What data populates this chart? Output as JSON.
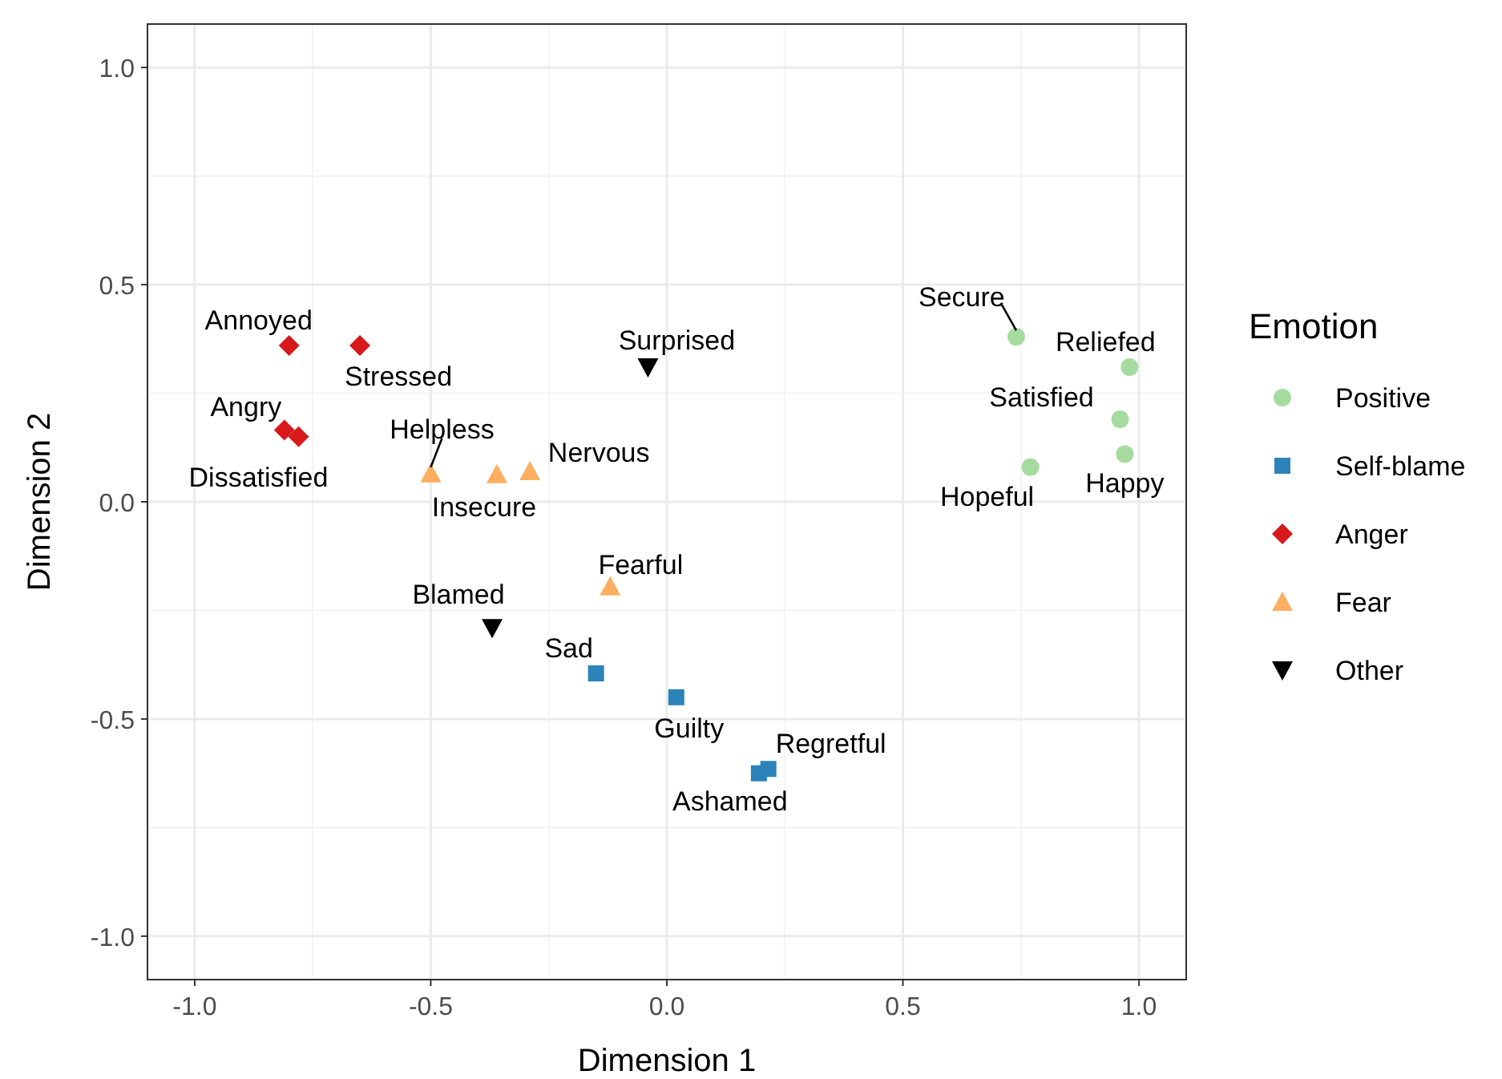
{
  "chart_data": {
    "type": "scatter",
    "xlabel": "Dimension 1",
    "ylabel": "Dimension 2",
    "legend_title": "Emotion",
    "xlim": [
      -1.1,
      1.1
    ],
    "ylim": [
      -1.1,
      1.1
    ],
    "xticks": [
      {
        "value": -1,
        "label": "-1.0"
      },
      {
        "value": -0.5,
        "label": "-0.5"
      },
      {
        "value": 0,
        "label": "0.0"
      },
      {
        "value": 0.5,
        "label": "0.5"
      },
      {
        "value": 1,
        "label": "1.0"
      }
    ],
    "yticks": [
      {
        "value": -1,
        "label": "-1.0"
      },
      {
        "value": -0.5,
        "label": "-0.5"
      },
      {
        "value": 0,
        "label": "0.0"
      },
      {
        "value": 0.5,
        "label": "0.5"
      },
      {
        "value": 1,
        "label": "1.0"
      }
    ],
    "grid": true,
    "legend": "right",
    "series": [
      {
        "name": "Positive",
        "color": "#a6dba0",
        "marker": "circle",
        "x": [
          0.74,
          0.98,
          0.96,
          0.97,
          0.77
        ],
        "values": [
          0.38,
          0.31,
          0.19,
          0.11,
          0.08
        ]
      },
      {
        "name": "Self-blame",
        "color": "#2b83ba",
        "marker": "square",
        "x": [
          -0.15,
          0.02,
          0.215,
          0.195
        ],
        "values": [
          -0.395,
          -0.45,
          -0.615,
          -0.625
        ]
      },
      {
        "name": "Anger",
        "color": "#d7191c",
        "marker": "diamond",
        "x": [
          -0.8,
          -0.65,
          -0.81,
          -0.78
        ],
        "values": [
          0.36,
          0.36,
          0.165,
          0.15
        ]
      },
      {
        "name": "Fear",
        "color": "#fdae61",
        "marker": "triangle",
        "x": [
          -0.5,
          -0.36,
          -0.29,
          -0.12
        ],
        "values": [
          0.065,
          0.063,
          0.07,
          -0.195
        ]
      },
      {
        "name": "Other",
        "color": "#000000",
        "marker": "triangle-down",
        "x": [
          -0.04,
          -0.37
        ],
        "values": [
          0.31,
          -0.29
        ]
      }
    ],
    "annotations": [
      {
        "text": "Secure",
        "x": 0.74,
        "y": 0.38
      },
      {
        "text": "Reliefed",
        "x": 0.98,
        "y": 0.31
      },
      {
        "text": "Satisfied",
        "x": 0.96,
        "y": 0.19
      },
      {
        "text": "Happy",
        "x": 0.97,
        "y": 0.11
      },
      {
        "text": "Hopeful",
        "x": 0.77,
        "y": 0.08
      },
      {
        "text": "Sad",
        "x": -0.15,
        "y": -0.395
      },
      {
        "text": "Guilty",
        "x": 0.02,
        "y": -0.45
      },
      {
        "text": "Regretful",
        "x": 0.215,
        "y": -0.615
      },
      {
        "text": "Ashamed",
        "x": 0.195,
        "y": -0.625
      },
      {
        "text": "Annoyed",
        "x": -0.8,
        "y": 0.36
      },
      {
        "text": "Stressed",
        "x": -0.65,
        "y": 0.36
      },
      {
        "text": "Angry",
        "x": -0.81,
        "y": 0.165
      },
      {
        "text": "Dissatisfied",
        "x": -0.78,
        "y": 0.15
      },
      {
        "text": "Helpless",
        "x": -0.5,
        "y": 0.065
      },
      {
        "text": "Insecure",
        "x": -0.36,
        "y": 0.063
      },
      {
        "text": "Nervous",
        "x": -0.29,
        "y": 0.07
      },
      {
        "text": "Fearful",
        "x": -0.12,
        "y": -0.195
      },
      {
        "text": "Surprised",
        "x": -0.04,
        "y": 0.31
      },
      {
        "text": "Blamed",
        "x": -0.37,
        "y": -0.29
      }
    ]
  }
}
